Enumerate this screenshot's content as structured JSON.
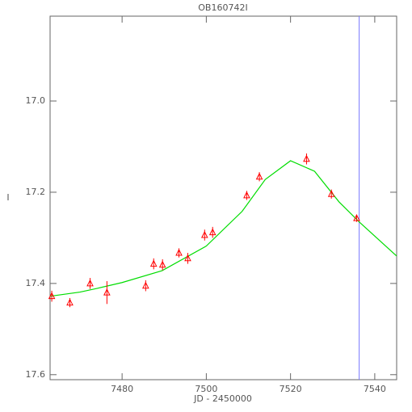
{
  "chart_data": {
    "type": "scatter",
    "title": "OB160742I",
    "x_label": "JD - 2450000",
    "y_label": "I",
    "x": [
      7463.3,
      7467.6,
      7472.4,
      7476.4,
      7485.6,
      7487.5,
      7489.6,
      7493.5,
      7495.6,
      7499.6,
      7501.5,
      7509.6,
      7512.6,
      7523.8,
      7529.7,
      7535.7
    ],
    "values": [
      17.428,
      17.442,
      17.4,
      17.42,
      17.405,
      17.357,
      17.359,
      17.333,
      17.345,
      17.294,
      17.288,
      17.207,
      17.166,
      17.127,
      17.204,
      17.257
    ],
    "errors": [
      0.012,
      0.01,
      0.012,
      0.025,
      0.012,
      0.012,
      0.012,
      0.01,
      0.012,
      0.012,
      0.012,
      0.01,
      0.01,
      0.012,
      0.01,
      0.008
    ],
    "marker_color": "#ff0000",
    "fit": {
      "color": "#00dd00",
      "x": [
        7462.9,
        7470,
        7474,
        7480,
        7489.5,
        7500,
        7508.5,
        7514,
        7520,
        7525.7,
        7531.5,
        7536.3,
        7545.2
      ],
      "values": [
        17.428,
        17.419,
        17.411,
        17.398,
        17.372,
        17.318,
        17.242,
        17.172,
        17.131,
        17.154,
        17.221,
        17.265,
        17.34
      ]
    },
    "vline": {
      "x": 7536.3,
      "color": "#7777ff"
    },
    "xlim": [
      7462.9,
      7545.2
    ],
    "ylim": [
      17.611,
      16.814
    ],
    "xticks": [
      7480,
      7500,
      7520,
      7540
    ],
    "yticks": [
      {
        "value": 17,
        "label": "17.0"
      },
      17.2,
      17.4,
      17.6
    ]
  }
}
